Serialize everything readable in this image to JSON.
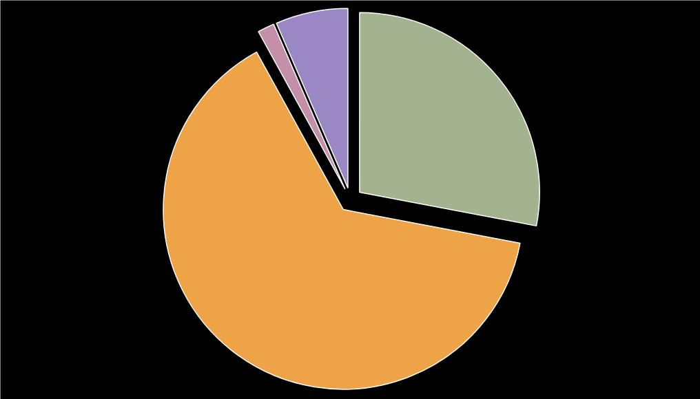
{
  "chart_data": {
    "type": "pie",
    "categories": [
      null,
      null,
      null,
      null
    ],
    "values": [
      28,
      64,
      1.5,
      6.5
    ],
    "colors": [
      "#a4b38f",
      "#eda346",
      "#c48fa8",
      "#9a88c4"
    ]
  }
}
